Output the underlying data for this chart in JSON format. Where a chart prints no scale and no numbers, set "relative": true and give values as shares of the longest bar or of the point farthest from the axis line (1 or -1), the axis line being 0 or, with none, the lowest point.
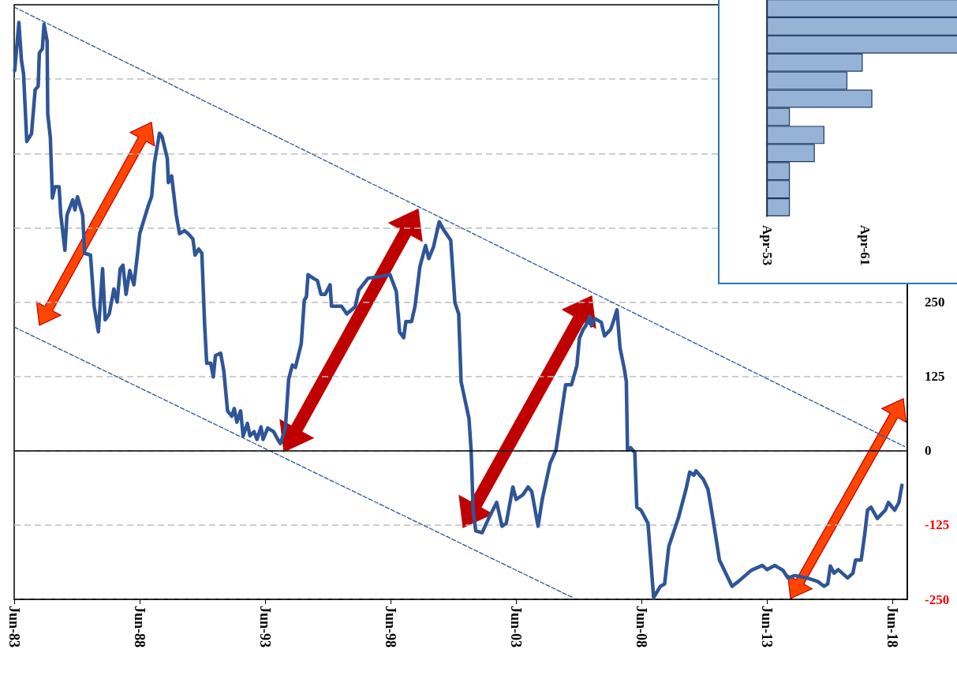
{
  "chart_data": [
    {
      "type": "line",
      "marker": "none",
      "grid": "y",
      "xlim": [
        "1983-06-01",
        "2019-01-01"
      ],
      "ylim": [
        -250,
        750
      ],
      "xticks": [
        {
          "value": "1983-06-01",
          "label": "Jun-83"
        },
        {
          "value": "1988-06-01",
          "label": "Jun-88"
        },
        {
          "value": "1993-06-01",
          "label": "Jun-93"
        },
        {
          "value": "1998-06-01",
          "label": "Jun-98"
        },
        {
          "value": "2003-06-01",
          "label": "Jun-03"
        },
        {
          "value": "2008-06-01",
          "label": "Jun-08"
        },
        {
          "value": "2013-06-01",
          "label": "Jun-13"
        },
        {
          "value": "2018-06-01",
          "label": "Jun-18"
        }
      ],
      "yticks": [
        -250,
        -125,
        0,
        125,
        250,
        {
          "value": 375,
          "label": null
        },
        {
          "value": 500,
          "label": null
        },
        {
          "value": 625,
          "label": null
        }
      ],
      "ref_lines": [
        {
          "axis": "y",
          "value": 0,
          "color": "#000000"
        }
      ],
      "series": [
        {
          "color": "#2f5597",
          "x": [
            "1983-06-08",
            "1983-08-08",
            "1983-09-15",
            "1983-10-15",
            "1983-12-01",
            "1984-02-08",
            "1984-04-01",
            "1984-05-15",
            "1984-06-01",
            "1984-07-15",
            "1984-08-08",
            "1984-09-22",
            "1984-10-01",
            "1984-11-08",
            "1984-12-08",
            "1985-01-15",
            "1985-03-15",
            "1985-04-08",
            "1985-06-08",
            "1985-07-08",
            "1985-10-01",
            "1985-11-01",
            "1985-12-08",
            "1986-02-22",
            "1986-03-22",
            "1986-06-15",
            "1986-08-08",
            "1986-10-08",
            "1986-12-08",
            "1987-01-15",
            "1987-03-15",
            "1987-05-22",
            "1987-07-08",
            "1987-08-22",
            "1987-10-01",
            "1987-11-15",
            "1988-01-08",
            "1988-03-08",
            "1988-05-01",
            "1988-06-01",
            "1988-10-01",
            "1988-11-22",
            "1989-01-01",
            "1989-03-15",
            "1989-04-22",
            "1989-07-08",
            "1989-07-22",
            "1989-09-08",
            "1989-11-15",
            "1990-01-01",
            "1990-03-15",
            "1990-05-08",
            "1990-07-15",
            "1990-08-15",
            "1990-10-08",
            "1990-11-22",
            "1991-01-01",
            "1991-02-01",
            "1991-04-01",
            "1991-05-08",
            "1991-06-08",
            "1991-08-22",
            "1991-10-08",
            "1991-12-01",
            "1992-02-01",
            "1992-03-08",
            "1992-04-15",
            "1992-06-08",
            "1992-07-15",
            "1992-09-15",
            "1992-10-22",
            "1992-12-22",
            "1993-02-01",
            "1993-04-01",
            "1993-05-01",
            "1993-07-08",
            "1993-10-01",
            "1993-12-01",
            "1994-01-08",
            "1994-03-22",
            "1994-05-08",
            "1994-07-01",
            "1994-08-15",
            "1994-11-08",
            "1994-12-22",
            "1995-01-22",
            "1995-02-15",
            "1995-05-01",
            "1995-07-01",
            "1995-08-22",
            "1995-10-22",
            "1995-12-01",
            "1996-01-01",
            "1996-01-22",
            "1996-06-15",
            "1996-09-01",
            "1997-01-01",
            "1997-02-22",
            "1997-07-08",
            "1997-11-01",
            "1998-05-22",
            "1998-08-22",
            "1998-10-08",
            "1998-12-08",
            "1999-01-08",
            "1999-04-01",
            "1999-05-22",
            "1999-08-01",
            "1999-10-22",
            "1999-12-08",
            "2000-02-15",
            "2000-05-08",
            "2000-07-08",
            "2000-10-22",
            "2000-12-22",
            "2001-02-15",
            "2001-03-22",
            "2001-07-15",
            "2001-08-15",
            "2001-09-15",
            "2001-10-22",
            "2002-01-22",
            "2002-04-22",
            "2002-08-22",
            "2002-11-08",
            "2003-01-08",
            "2003-04-15",
            "2003-06-01",
            "2003-09-08",
            "2003-11-22",
            "2004-01-15",
            "2004-04-15",
            "2004-06-15",
            "2004-10-08",
            "2005-01-01",
            "2005-03-22",
            "2005-05-22",
            "2005-08-15",
            "2005-11-01",
            "2005-12-08",
            "2006-02-01",
            "2006-03-08",
            "2006-05-08",
            "2006-06-01",
            "2006-07-22",
            "2006-10-22",
            "2006-12-08",
            "2007-03-08",
            "2007-04-15",
            "2007-06-08",
            "2007-07-22",
            "2007-09-22",
            "2007-10-22",
            "2007-11-08",
            "2007-12-22",
            "2008-02-22",
            "2008-03-22",
            "2008-05-22",
            "2008-09-01",
            "2008-11-22",
            "2009-03-01",
            "2009-05-01",
            "2009-07-01",
            "2009-11-15",
            "2010-03-08",
            "2010-05-01",
            "2010-07-01",
            "2010-08-01",
            "2010-11-15",
            "2011-01-22",
            "2011-03-08",
            "2011-05-15",
            "2011-07-08",
            "2012-01-08",
            "2012-04-08",
            "2012-10-15",
            "2013-03-22",
            "2013-06-01",
            "2013-09-22",
            "2014-01-15",
            "2014-04-01",
            "2014-07-08",
            "2015-01-01",
            "2015-06-08",
            "2015-09-08",
            "2015-11-01",
            "2015-12-08",
            "2016-02-01",
            "2016-04-01",
            "2016-08-15",
            "2016-11-01",
            "2016-12-08",
            "2017-03-01",
            "2017-04-22",
            "2017-06-01",
            "2017-07-22",
            "2017-10-22",
            "2018-02-15",
            "2018-04-01",
            "2018-07-01",
            "2018-09-01",
            "2018-10-15"
          ],
          "values": [
            639,
            720,
            656,
            634,
            520,
            533,
            607,
            613,
            669,
            676,
            717,
            689,
            566,
            527,
            425,
            444,
            444,
            398,
            337,
            396,
            422,
            405,
            427,
            396,
            332,
            329,
            243,
            200,
            306,
            220,
            230,
            272,
            250,
            306,
            312,
            263,
            303,
            279,
            332,
            365,
            411,
            428,
            484,
            534,
            528,
            491,
            451,
            462,
            396,
            365,
            370,
            365,
            356,
            329,
            339,
            332,
            213,
            147,
            147,
            124,
            160,
            164,
            134,
            67,
            58,
            71,
            48,
            67,
            25,
            46,
            25,
            32,
            19,
            40,
            19,
            38,
            32,
            19,
            12,
            38,
            120,
            144,
            140,
            180,
            253,
            259,
            296,
            290,
            286,
            263,
            263,
            272,
            279,
            243,
            243,
            230,
            242,
            270,
            290,
            292,
            296,
            268,
            200,
            190,
            217,
            217,
            243,
            310,
            345,
            323,
            343,
            385,
            372,
            354,
            249,
            230,
            116,
            54,
            1,
            -104,
            -135,
            -138,
            -115,
            -87,
            -127,
            -122,
            -61,
            -82,
            -74,
            -61,
            -69,
            -127,
            -82,
            -21,
            1,
            64,
            111,
            111,
            143,
            189,
            204,
            210,
            226,
            210,
            222,
            216,
            193,
            204,
            217,
            237,
            173,
            138,
            116,
            1,
            5,
            -3,
            -95,
            -100,
            -122,
            -247,
            -228,
            -224,
            -161,
            -114,
            -65,
            -36,
            -41,
            -34,
            -48,
            -65,
            -95,
            -144,
            -184,
            -228,
            -220,
            -201,
            -193,
            -200,
            -193,
            -201,
            -214,
            -210,
            -214,
            -220,
            -228,
            -224,
            -194,
            -206,
            -200,
            -214,
            -206,
            -184,
            -184,
            -140,
            -100,
            -95,
            -114,
            -100,
            -87,
            -100,
            -87,
            -58
          ]
        },
        {
          "type": "line",
          "line_style": "dashed",
          "color": "#2f5597",
          "x": [
            "1983-06-01",
            "2018-11-22"
          ],
          "values": [
            746,
            7
          ]
        },
        {
          "type": "line",
          "line_style": "dashed",
          "color": "#2f5597",
          "x": [
            "1983-06-01",
            "2005-09-01"
          ],
          "values": [
            208,
            -247
          ]
        }
      ]
    },
    {
      "type": "bar",
      "orientation": "horizontal",
      "relative": true,
      "color": "#95b3d7",
      "categories": [
        null,
        null,
        null,
        null,
        null,
        null,
        null,
        null,
        null,
        null,
        null,
        null
      ],
      "values": [
        1,
        1,
        1,
        0.5,
        0.42,
        0.55,
        0.12,
        0.3,
        0.25,
        0.12,
        0.12,
        0.12
      ],
      "annotations": [
        "Apr-53",
        "Apr-61"
      ]
    }
  ]
}
